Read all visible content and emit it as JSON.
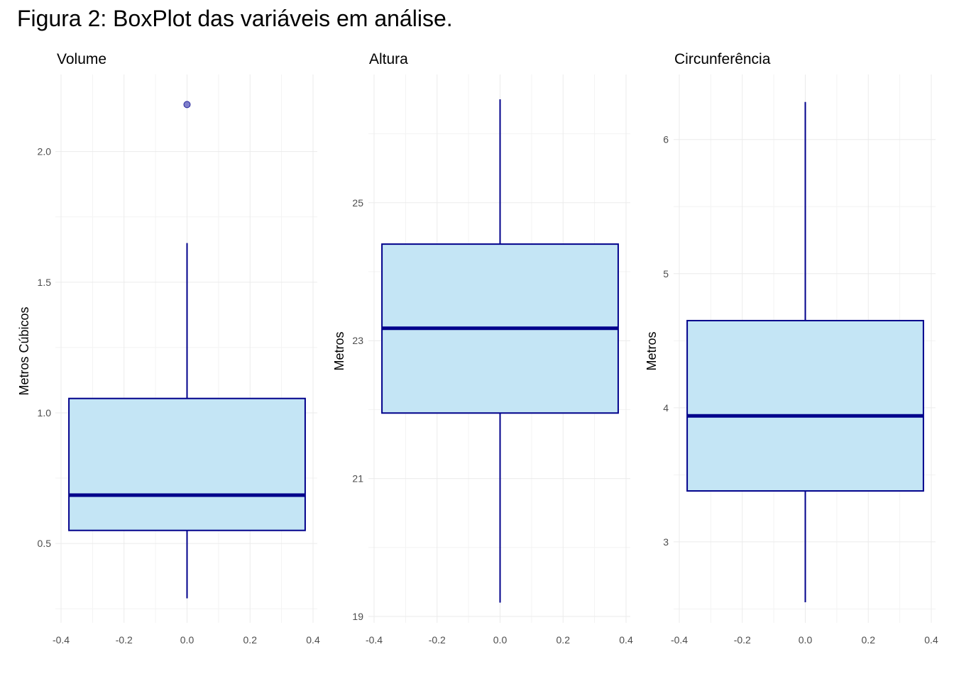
{
  "figure": {
    "title": "Figura 2: BoxPlot das variáveis em análise."
  },
  "style": {
    "box_fill": "#c4e5f5",
    "box_stroke": "#00008b",
    "median_color": "#00008b",
    "outlier_fill": "#6a6ac4",
    "grid_major": "#ebebeb",
    "grid_minor": "#f3f3f3"
  },
  "chart_data": [
    {
      "type": "boxplot",
      "title": "Volume",
      "ylabel": "Metros Cúbicos",
      "xlim": [
        -0.4,
        0.4
      ],
      "x_ticks": [
        -0.4,
        -0.2,
        0.0,
        0.2,
        0.4
      ],
      "x_tick_labels": [
        "-0.4",
        "-0.2",
        "0.0",
        "0.2",
        "0.4"
      ],
      "ylim": [
        0.275,
        2.2
      ],
      "y_ticks": [
        0.5,
        1.0,
        1.5,
        2.0
      ],
      "y_tick_labels": [
        "0.5",
        "1.0",
        "1.5",
        "2.0"
      ],
      "y_minor": [
        0.25,
        0.75,
        1.25,
        1.75
      ],
      "box": {
        "min": 0.29,
        "q1": 0.55,
        "median": 0.685,
        "q3": 1.055,
        "max": 1.65
      },
      "outliers": [
        2.18
      ],
      "box_x": [
        -0.375,
        0.375
      ]
    },
    {
      "type": "boxplot",
      "title": "Altura",
      "ylabel": "Metros",
      "xlim": [
        -0.4,
        0.4
      ],
      "x_ticks": [
        -0.4,
        -0.2,
        0.0,
        0.2,
        0.4
      ],
      "x_tick_labels": [
        "-0.4",
        "-0.2",
        "0.0",
        "0.2",
        "0.4"
      ],
      "ylim": [
        19.0,
        26.5
      ],
      "y_ticks": [
        19,
        21,
        23,
        25
      ],
      "y_tick_labels": [
        "19",
        "21",
        "23",
        "25"
      ],
      "y_minor": [
        20,
        22,
        24,
        26
      ],
      "box": {
        "min": 19.2,
        "q1": 21.95,
        "median": 23.18,
        "q3": 24.4,
        "max": 26.5
      },
      "outliers": [],
      "box_x": [
        -0.375,
        0.375
      ]
    },
    {
      "type": "boxplot",
      "title": "Circunferência",
      "ylabel": "Metros",
      "xlim": [
        -0.4,
        0.4
      ],
      "x_ticks": [
        -0.4,
        -0.2,
        0.0,
        0.2,
        0.4
      ],
      "x_tick_labels": [
        "-0.4",
        "-0.2",
        "0.0",
        "0.2",
        "0.4"
      ],
      "ylim": [
        2.55,
        6.3
      ],
      "y_ticks": [
        3,
        4,
        5,
        6
      ],
      "y_tick_labels": [
        "3",
        "4",
        "5",
        "6"
      ],
      "y_minor": [
        2.5,
        3.5,
        4.5,
        5.5
      ],
      "box": {
        "min": 2.55,
        "q1": 3.38,
        "median": 3.94,
        "q3": 4.65,
        "max": 6.28
      },
      "outliers": [],
      "box_x": [
        -0.375,
        0.375
      ]
    }
  ]
}
